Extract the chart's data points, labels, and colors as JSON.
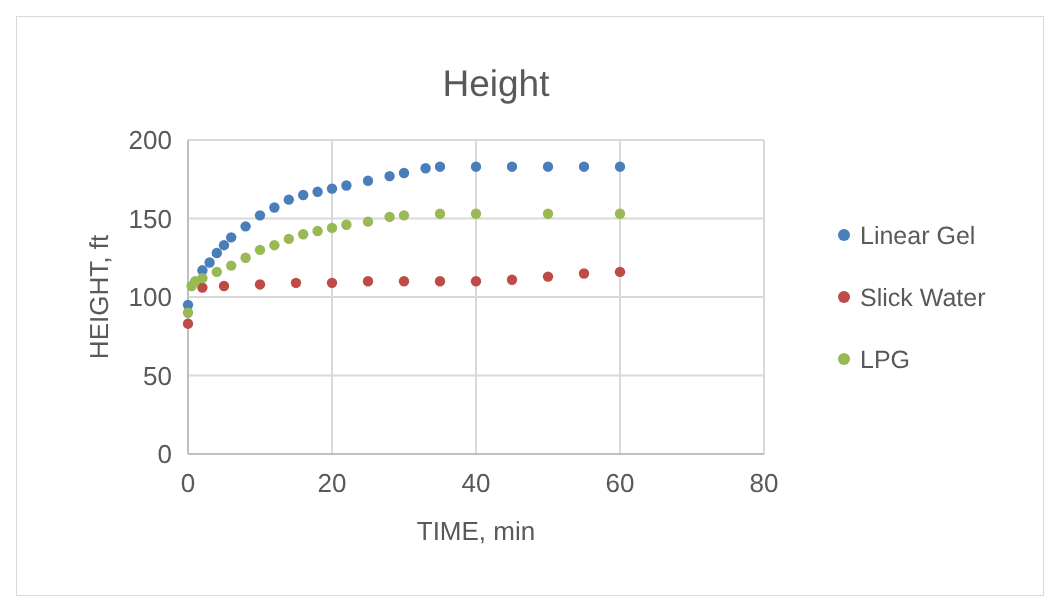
{
  "chart_data": {
    "type": "scatter",
    "title": "Height",
    "xlabel": "TIME, min",
    "ylabel": "HEIGHT, ft",
    "xlim": [
      0,
      80
    ],
    "ylim": [
      0,
      200
    ],
    "xticks": [
      0,
      20,
      40,
      60,
      80
    ],
    "yticks": [
      0,
      50,
      100,
      150,
      200
    ],
    "grid": true,
    "legend": "right",
    "marker": "circle",
    "series": [
      {
        "name": "Linear Gel",
        "color": "#4a7ebb",
        "x": [
          0,
          2,
          3,
          4,
          5,
          6,
          8,
          10,
          12,
          14,
          16,
          18,
          20,
          22,
          25,
          28,
          30,
          33,
          35,
          40,
          45,
          50,
          55,
          60
        ],
        "values": [
          95,
          117,
          122,
          128,
          133,
          138,
          145,
          152,
          157,
          162,
          165,
          167,
          169,
          171,
          174,
          177,
          179,
          182,
          183,
          183,
          183,
          183,
          183,
          183
        ]
      },
      {
        "name": "Slick Water",
        "color": "#be4b48",
        "x": [
          0,
          2,
          5,
          10,
          15,
          20,
          25,
          30,
          35,
          40,
          45,
          50,
          55,
          60
        ],
        "values": [
          83,
          106,
          107,
          108,
          109,
          109,
          110,
          110,
          110,
          110,
          111,
          113,
          115,
          116
        ]
      },
      {
        "name": "LPG",
        "color": "#98b954",
        "x": [
          0,
          0.5,
          1,
          2,
          4,
          6,
          8,
          10,
          12,
          14,
          16,
          18,
          20,
          22,
          25,
          28,
          30,
          35,
          40,
          50,
          60
        ],
        "values": [
          90,
          107,
          110,
          112,
          116,
          120,
          125,
          130,
          133,
          137,
          140,
          142,
          144,
          146,
          148,
          151,
          152,
          153,
          153,
          153,
          153
        ]
      }
    ]
  }
}
